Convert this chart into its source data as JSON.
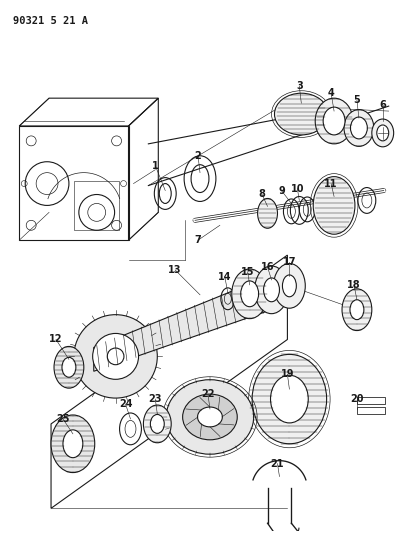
{
  "title": "90321 5 21 A",
  "bg_color": "#ffffff",
  "line_color": "#1a1a1a",
  "fig_width": 4.03,
  "fig_height": 5.33,
  "dpi": 100
}
